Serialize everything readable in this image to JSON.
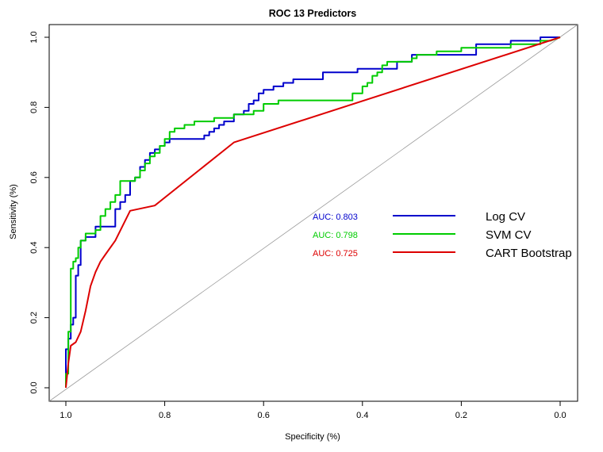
{
  "chart_data": {
    "type": "line",
    "title": "ROC 13 Predictors",
    "xlabel": "Specificity (%)",
    "ylabel": "Sensitivity (%)",
    "xlim": [
      1.0,
      0.0
    ],
    "ylim": [
      0.0,
      1.0
    ],
    "x_ticks": [
      "1.0",
      "0.8",
      "0.6",
      "0.4",
      "0.2",
      "0.0"
    ],
    "y_ticks": [
      "0.0",
      "0.2",
      "0.4",
      "0.6",
      "0.8",
      "1.0"
    ],
    "legend_position": "center-right",
    "auc_labels": [
      {
        "text": "AUC: 0.803",
        "color": "#0000CC"
      },
      {
        "text": "AUC: 0.798",
        "color": "#00CC00"
      },
      {
        "text": "AUC: 0.725",
        "color": "#DD0000"
      }
    ],
    "series": [
      {
        "name": "Log CV",
        "color": "#0000CC",
        "x": [
          1.0,
          1.0,
          0.995,
          0.995,
          0.99,
          0.99,
          0.985,
          0.985,
          0.98,
          0.98,
          0.975,
          0.975,
          0.97,
          0.97,
          0.96,
          0.96,
          0.94,
          0.94,
          0.9,
          0.9,
          0.89,
          0.89,
          0.88,
          0.88,
          0.87,
          0.87,
          0.86,
          0.86,
          0.85,
          0.85,
          0.84,
          0.84,
          0.83,
          0.83,
          0.82,
          0.82,
          0.81,
          0.81,
          0.8,
          0.8,
          0.79,
          0.79,
          0.72,
          0.72,
          0.71,
          0.71,
          0.7,
          0.7,
          0.69,
          0.69,
          0.68,
          0.68,
          0.66,
          0.66,
          0.64,
          0.64,
          0.63,
          0.63,
          0.62,
          0.62,
          0.61,
          0.61,
          0.6,
          0.6,
          0.58,
          0.58,
          0.56,
          0.56,
          0.54,
          0.54,
          0.48,
          0.48,
          0.41,
          0.41,
          0.33,
          0.33,
          0.3,
          0.3,
          0.17,
          0.17,
          0.1,
          0.1,
          0.04,
          0.04,
          0.0
        ],
        "y": [
          0.0,
          0.11,
          0.11,
          0.14,
          0.14,
          0.18,
          0.18,
          0.2,
          0.2,
          0.32,
          0.32,
          0.35,
          0.35,
          0.42,
          0.42,
          0.43,
          0.43,
          0.46,
          0.46,
          0.51,
          0.51,
          0.53,
          0.53,
          0.55,
          0.55,
          0.59,
          0.59,
          0.6,
          0.6,
          0.63,
          0.63,
          0.65,
          0.65,
          0.67,
          0.67,
          0.68,
          0.68,
          0.69,
          0.69,
          0.7,
          0.7,
          0.71,
          0.71,
          0.72,
          0.72,
          0.73,
          0.73,
          0.74,
          0.74,
          0.75,
          0.75,
          0.76,
          0.76,
          0.78,
          0.78,
          0.79,
          0.79,
          0.81,
          0.81,
          0.82,
          0.82,
          0.84,
          0.84,
          0.85,
          0.85,
          0.86,
          0.86,
          0.87,
          0.87,
          0.88,
          0.88,
          0.9,
          0.9,
          0.91,
          0.91,
          0.93,
          0.93,
          0.95,
          0.95,
          0.98,
          0.98,
          0.99,
          0.99,
          1.0,
          1.0
        ]
      },
      {
        "name": "SVM CV",
        "color": "#00CC00",
        "x": [
          1.0,
          1.0,
          0.995,
          0.995,
          0.99,
          0.99,
          0.985,
          0.985,
          0.98,
          0.98,
          0.975,
          0.975,
          0.97,
          0.97,
          0.96,
          0.96,
          0.94,
          0.94,
          0.93,
          0.93,
          0.92,
          0.92,
          0.91,
          0.91,
          0.9,
          0.9,
          0.89,
          0.89,
          0.86,
          0.86,
          0.85,
          0.85,
          0.84,
          0.84,
          0.83,
          0.83,
          0.82,
          0.82,
          0.81,
          0.81,
          0.8,
          0.8,
          0.79,
          0.79,
          0.78,
          0.78,
          0.76,
          0.76,
          0.74,
          0.74,
          0.7,
          0.7,
          0.66,
          0.66,
          0.62,
          0.62,
          0.6,
          0.6,
          0.57,
          0.57,
          0.42,
          0.42,
          0.4,
          0.4,
          0.39,
          0.39,
          0.38,
          0.38,
          0.37,
          0.37,
          0.36,
          0.36,
          0.35,
          0.35,
          0.3,
          0.3,
          0.29,
          0.29,
          0.25,
          0.25,
          0.2,
          0.2,
          0.1,
          0.1,
          0.04,
          0.04,
          0.02,
          0.0
        ],
        "y": [
          0.0,
          0.04,
          0.04,
          0.16,
          0.16,
          0.34,
          0.34,
          0.36,
          0.36,
          0.37,
          0.37,
          0.4,
          0.4,
          0.42,
          0.42,
          0.44,
          0.44,
          0.45,
          0.45,
          0.49,
          0.49,
          0.51,
          0.51,
          0.53,
          0.53,
          0.55,
          0.55,
          0.59,
          0.59,
          0.6,
          0.6,
          0.62,
          0.62,
          0.64,
          0.64,
          0.66,
          0.66,
          0.67,
          0.67,
          0.69,
          0.69,
          0.71,
          0.71,
          0.73,
          0.73,
          0.74,
          0.74,
          0.75,
          0.75,
          0.76,
          0.76,
          0.77,
          0.77,
          0.78,
          0.78,
          0.79,
          0.79,
          0.81,
          0.81,
          0.82,
          0.82,
          0.84,
          0.84,
          0.86,
          0.86,
          0.87,
          0.87,
          0.89,
          0.89,
          0.9,
          0.9,
          0.92,
          0.92,
          0.93,
          0.93,
          0.94,
          0.94,
          0.95,
          0.95,
          0.96,
          0.96,
          0.97,
          0.97,
          0.98,
          0.98,
          0.99,
          0.99,
          1.0
        ]
      },
      {
        "name": "CART Bootstrap",
        "color": "#DD0000",
        "x": [
          1.0,
          0.995,
          0.99,
          0.98,
          0.97,
          0.96,
          0.95,
          0.94,
          0.93,
          0.92,
          0.9,
          0.87,
          0.82,
          0.66,
          0.0
        ],
        "y": [
          0.0,
          0.07,
          0.12,
          0.13,
          0.16,
          0.22,
          0.29,
          0.33,
          0.36,
          0.38,
          0.42,
          0.505,
          0.52,
          0.7,
          1.0
        ]
      }
    ]
  }
}
